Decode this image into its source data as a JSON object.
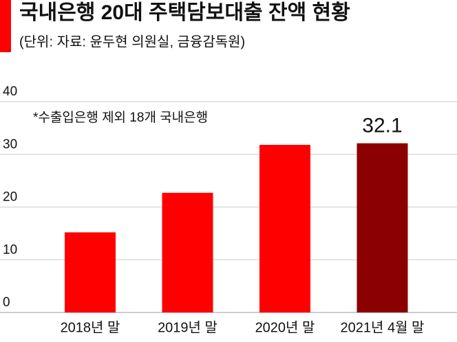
{
  "chart_data": {
    "type": "bar",
    "title": "국내은행 20대 주택담보대출 잔액 현황",
    "subtitle": "(단위: 자료: 윤두현 의원실, 금융감독원)",
    "annotation": "*수출입은행 제외 18개 국내은행",
    "categories": [
      "2018년 말",
      "2019년 말",
      "2020년 말",
      "2021년 4월 말"
    ],
    "values": [
      15.2,
      22.7,
      31.8,
      32.1
    ],
    "colors": [
      "#ff0000",
      "#ff0000",
      "#ff0000",
      "#8b0000"
    ],
    "data_labels": [
      false,
      false,
      false,
      true
    ],
    "ylim": [
      0,
      40
    ],
    "yticks": [
      0,
      10,
      20,
      30,
      40
    ],
    "grid": true
  }
}
